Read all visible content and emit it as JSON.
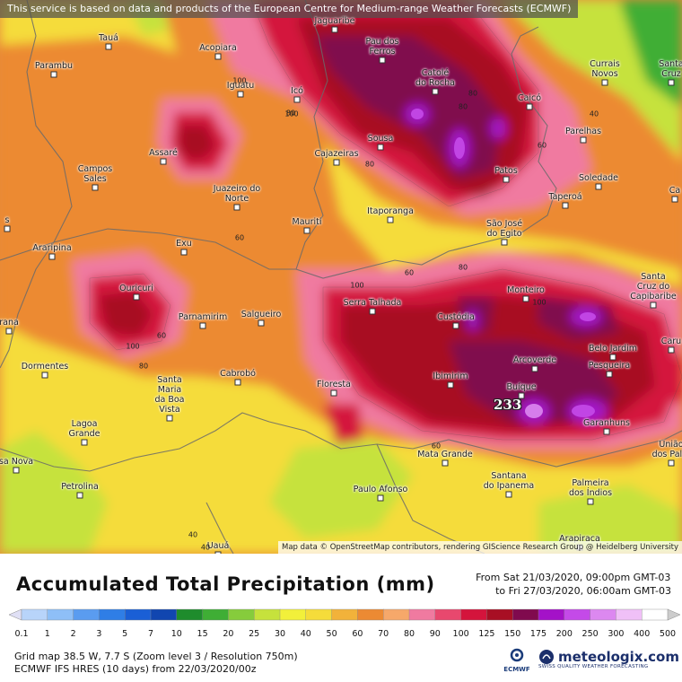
{
  "header": {
    "notice": "This service is based on data and products of the European Centre for Medium-range Weather Forecasts (ECMWF)"
  },
  "map": {
    "attribution": "Map data © OpenStreetMap contributors, rendering GIScience Research Group @ Heidelberg University",
    "max_value": "233",
    "cities": [
      {
        "name": "Jaguaribe"
      },
      {
        "name": "Tauá"
      },
      {
        "name": "Acopiara"
      },
      {
        "name": "Pau dos\nFerros"
      },
      {
        "name": "Currais\nNovos"
      },
      {
        "name": "Santa\nCruz"
      },
      {
        "name": "Parambu"
      },
      {
        "name": "Iguatu"
      },
      {
        "name": "Icó"
      },
      {
        "name": "Catolé\ndo Rocha"
      },
      {
        "name": "Caicó"
      },
      {
        "name": "Parelhas"
      },
      {
        "name": "Sousa"
      },
      {
        "name": "Assaré"
      },
      {
        "name": "Cajazeiras"
      },
      {
        "name": "Patos"
      },
      {
        "name": "Campos\nSales"
      },
      {
        "name": "Soledade"
      },
      {
        "name": "Juazeiro do\nNorte"
      },
      {
        "name": "Taperoá"
      },
      {
        "name": "Itaporanga"
      },
      {
        "name": "Mauriti"
      },
      {
        "name": "São José\ndo Egito"
      },
      {
        "name": "Exu"
      },
      {
        "name": "Araripina"
      },
      {
        "name": "Santa\nCruz do\nCapibaribe"
      },
      {
        "name": "Monteiro"
      },
      {
        "name": "Ouricuri"
      },
      {
        "name": "Serra Talhada"
      },
      {
        "name": "Custódia"
      },
      {
        "name": "Parnamirim"
      },
      {
        "name": "Salgueiro"
      },
      {
        "name": "Belo Jardim"
      },
      {
        "name": "Arcoverde"
      },
      {
        "name": "Pesqueira"
      },
      {
        "name": "Dormentes"
      },
      {
        "name": "Cabrobó"
      },
      {
        "name": "Ibimirim"
      },
      {
        "name": "Santa\nMaria\nda Boa\nVista"
      },
      {
        "name": "Floresta"
      },
      {
        "name": "Buíque"
      },
      {
        "name": "Garanhuns"
      },
      {
        "name": "Lagoa\nGrande"
      },
      {
        "name": "Mata Grande"
      },
      {
        "name": "Santana\ndo Ipanema"
      },
      {
        "name": "Palmeira\ndos Índios"
      },
      {
        "name": "Petrolina"
      },
      {
        "name": "Paulo Afonso"
      },
      {
        "name": "Arapiraca"
      },
      {
        "name": "Uauá"
      },
      {
        "name": "sa Nova"
      },
      {
        "name": "Caru"
      },
      {
        "name": "União\ndos Palm"
      },
      {
        "name": "Ca"
      },
      {
        "name": "rana"
      },
      {
        "name": "s"
      }
    ],
    "contour_labels": [
      "80",
      "100",
      "80",
      "60",
      "40",
      "100",
      "80",
      "60",
      "80",
      "100",
      "60",
      "80",
      "100",
      "80",
      "60",
      "100",
      "60",
      "40",
      "40"
    ]
  },
  "legend": {
    "title": "Accumulated Total Precipitation (mm)",
    "from": "From Sat 21/03/2020, 09:00pm GMT-03",
    "to": "to Fri 27/03/2020, 06:00am GMT-03",
    "ticks": [
      "0.1",
      "1",
      "2",
      "3",
      "5",
      "7",
      "10",
      "15",
      "20",
      "25",
      "30",
      "40",
      "50",
      "60",
      "70",
      "80",
      "90",
      "100",
      "125",
      "150",
      "175",
      "200",
      "250",
      "300",
      "400",
      "500"
    ],
    "colors": [
      "#e0e0f5",
      "#b8d4fa",
      "#8ebff7",
      "#5a9cf0",
      "#2f7ee6",
      "#1a5fd6",
      "#1146b0",
      "#1e8c2c",
      "#3fae35",
      "#86cc3c",
      "#c6e23c",
      "#f2f03a",
      "#f5dc3a",
      "#f2b23a",
      "#ec8a33",
      "#f6a86a",
      "#f07aa0",
      "#e8486e",
      "#d4143c",
      "#a80f24",
      "#800a4e",
      "#a412c8",
      "#c44ae8",
      "#dc88f0",
      "#f0c0f7",
      "#ffffff",
      "#cccccc"
    ],
    "grid_info": "Grid map 38.5 W, 7.7 S (Zoom level 3 / Resolution 750m)",
    "model_info": "ECMWF IFS HRES (10 days) from 22/03/2020/00z",
    "ecmwf_label": "ECMWF",
    "brand_name": "meteologix.com",
    "brand_tag": "SWISS QUALITY WEATHER FORECASTING"
  }
}
